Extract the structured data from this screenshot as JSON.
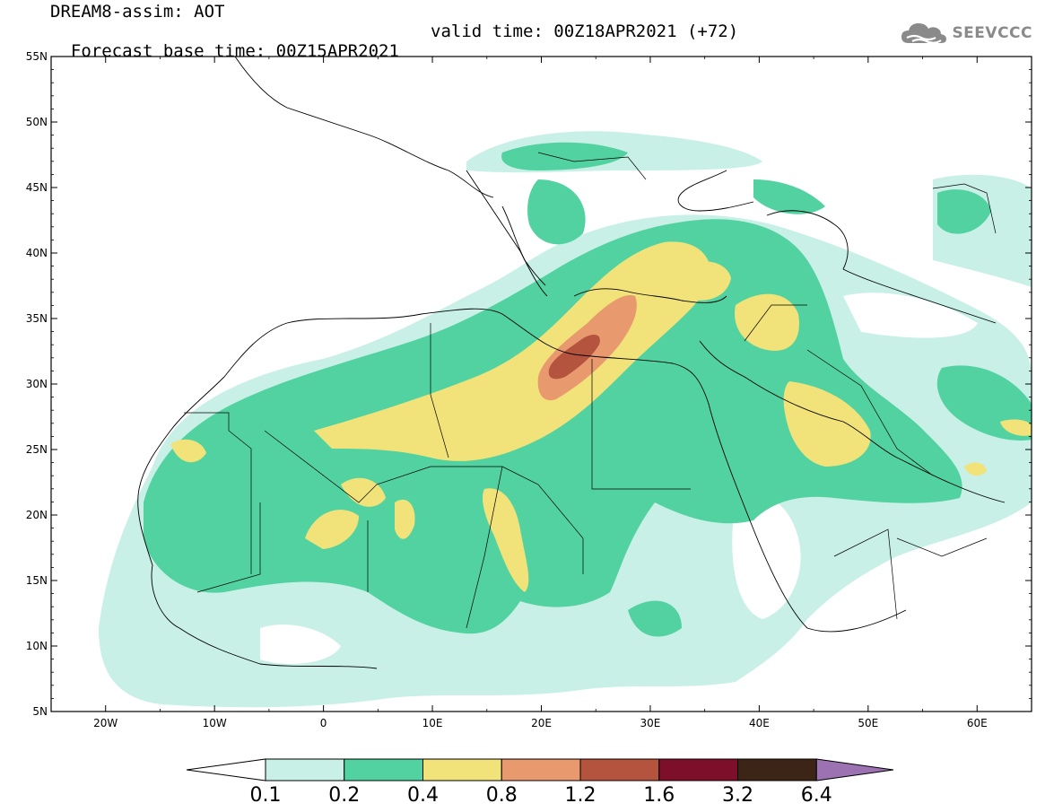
{
  "header": {
    "title": "DREAM8-assim: AOT",
    "base_time": "Forecast base time: 00Z15APR2021",
    "valid_time": "valid time: 00Z18APR2021 (+72)"
  },
  "logo": {
    "text": "SEEVCCC",
    "icon": "cloud-icon"
  },
  "map": {
    "projection": "lat-lon",
    "lon_range": [
      -25,
      65
    ],
    "lat_range": [
      5,
      55
    ],
    "lat_labels": [
      "55N",
      "50N",
      "45N",
      "40N",
      "35N",
      "30N",
      "25N",
      "20N",
      "15N",
      "10N",
      "5N"
    ],
    "lon_labels": [
      "20W",
      "10W",
      "0",
      "10E",
      "20E",
      "30E",
      "40E",
      "50E",
      "60E"
    ]
  },
  "legend": {
    "colors": [
      "#ffffff",
      "#c8f0e6",
      "#52d2a0",
      "#f2e27a",
      "#e89a6e",
      "#b5543e",
      "#7d0f2a",
      "#3c2416",
      "#9c72b2"
    ],
    "labels": [
      "0.1",
      "0.2",
      "0.4",
      "0.8",
      "1.2",
      "1.6",
      "3.2",
      "6.4"
    ]
  }
}
